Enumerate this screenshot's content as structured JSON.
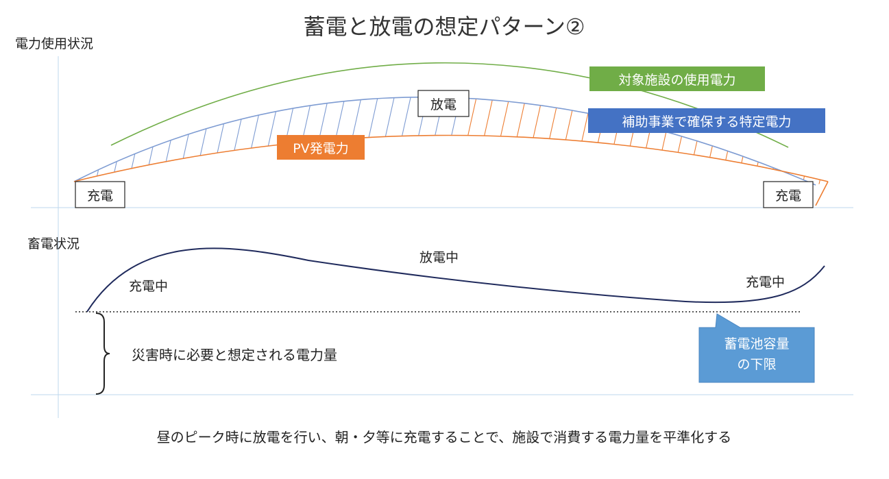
{
  "title": "蓄電と放電の想定パターン②",
  "top_section": {
    "axis_label": "電力使用状況",
    "legend_usage": "対象施設の使用電力",
    "legend_specific": "補助事業で確保する特定電力",
    "legend_pv": "PV発電力",
    "label_discharge": "放電",
    "label_charge_left": "充電",
    "label_charge_right": "充電"
  },
  "bottom_section": {
    "axis_label": "畜電状況",
    "state_charging_left": "充電中",
    "state_discharging": "放電中",
    "state_charging_right": "充電中",
    "reserve_label": "災害時に必要と想定される電力量",
    "callout_line1": "蓄電池容量",
    "callout_line2": "の下限"
  },
  "footer": "昼のピーク時に放電を行い、朝・夕等に充電することで、施設で消費する電力量を平準化する",
  "colors": {
    "usage_green": "#70ad47",
    "pv_orange": "#ed7d31",
    "specific_blue": "#4472c4",
    "curve_blue": "#7d9bd2",
    "storage_navy": "#1f2a5c",
    "callout_blue": "#5b9bd5",
    "axis": "#bdd7ee"
  }
}
